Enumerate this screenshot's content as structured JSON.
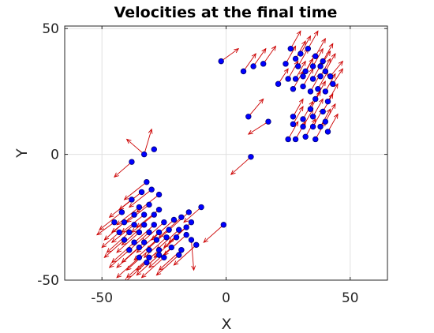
{
  "chart_data": {
    "type": "scatter",
    "title": "Velocities at the final time",
    "xlabel": "X",
    "ylabel": "Y",
    "xlim": [
      -65,
      65
    ],
    "ylim": [
      -50,
      51
    ],
    "xticks": [
      -50,
      0,
      50
    ],
    "yticks": [
      -50,
      0,
      50
    ],
    "xtick_labels": [
      "-50",
      "0",
      "50"
    ],
    "ytick_labels": [
      "-50",
      "0",
      "50"
    ],
    "grid": true,
    "box": true,
    "colors": {
      "points": "#0000ff",
      "point_edge": "#00007a",
      "arrows": "#cc0000",
      "grid": "#e0e0e0",
      "axes": "#262626"
    },
    "series": [
      {
        "type": "points",
        "points": [
          [
            -2,
            37
          ],
          [
            7,
            33
          ],
          [
            11,
            35
          ],
          [
            15,
            36
          ],
          [
            21,
            28
          ],
          [
            24,
            36
          ],
          [
            26,
            42
          ],
          [
            28,
            38
          ],
          [
            30,
            40
          ],
          [
            33,
            42
          ],
          [
            36,
            39
          ],
          [
            39,
            37
          ],
          [
            38,
            35
          ],
          [
            29,
            35
          ],
          [
            32,
            33
          ],
          [
            35,
            35
          ],
          [
            40,
            33
          ],
          [
            42,
            31
          ],
          [
            25,
            30
          ],
          [
            28,
            30
          ],
          [
            31,
            31
          ],
          [
            35,
            30
          ],
          [
            38,
            31
          ],
          [
            43,
            28
          ],
          [
            27,
            26
          ],
          [
            31,
            27
          ],
          [
            34,
            25
          ],
          [
            37,
            26
          ],
          [
            40,
            25
          ],
          [
            36,
            22
          ],
          [
            41,
            21
          ],
          [
            34,
            18
          ],
          [
            39,
            17
          ],
          [
            27,
            15
          ],
          [
            31,
            14
          ],
          [
            35,
            15
          ],
          [
            40,
            13
          ],
          [
            27,
            12
          ],
          [
            31,
            11
          ],
          [
            35,
            11
          ],
          [
            38,
            11
          ],
          [
            41,
            9
          ],
          [
            25,
            6
          ],
          [
            28,
            6
          ],
          [
            32,
            7
          ],
          [
            36,
            6
          ],
          [
            9,
            15
          ],
          [
            17,
            13
          ],
          [
            10,
            -1
          ],
          [
            -38,
            -3
          ],
          [
            -33,
            0
          ],
          [
            -29,
            2
          ],
          [
            -32,
            -11
          ],
          [
            -30,
            -14
          ],
          [
            -27,
            -16
          ],
          [
            -34,
            -15
          ],
          [
            -38,
            -18
          ],
          [
            -35,
            -21
          ],
          [
            -31,
            -20
          ],
          [
            -27,
            -22
          ],
          [
            -33,
            -24
          ],
          [
            -37,
            -24
          ],
          [
            -42,
            -23
          ],
          [
            -29,
            -24
          ],
          [
            -45,
            -27
          ],
          [
            -41,
            -27
          ],
          [
            -37,
            -28
          ],
          [
            -33,
            -28
          ],
          [
            -29,
            -28
          ],
          [
            -25,
            -27
          ],
          [
            -21,
            -26
          ],
          [
            -18,
            -25
          ],
          [
            -15,
            -23
          ],
          [
            -10,
            -21
          ],
          [
            -14,
            -27
          ],
          [
            -43,
            -31
          ],
          [
            -39,
            -31
          ],
          [
            -35,
            -31
          ],
          [
            -31,
            -31
          ],
          [
            -27,
            -31
          ],
          [
            -23,
            -30
          ],
          [
            -19,
            -30
          ],
          [
            -16,
            -29
          ],
          [
            -41,
            -34
          ],
          [
            -37,
            -35
          ],
          [
            -33,
            -35
          ],
          [
            -28,
            -34
          ],
          [
            -24,
            -33
          ],
          [
            -20,
            -33
          ],
          [
            -16,
            -32
          ],
          [
            -39,
            -38
          ],
          [
            -35,
            -37
          ],
          [
            -31,
            -38
          ],
          [
            -27,
            -38
          ],
          [
            -22,
            -37
          ],
          [
            -18,
            -38
          ],
          [
            -14,
            -34
          ],
          [
            -12,
            -36
          ],
          [
            -35,
            -41
          ],
          [
            -31,
            -41
          ],
          [
            -27,
            -40
          ],
          [
            -32,
            -43
          ],
          [
            -25,
            -41
          ],
          [
            -19,
            -40
          ],
          [
            -1,
            -28
          ]
        ]
      },
      {
        "type": "arrows",
        "segments": [
          [
            -2,
            37,
            5,
            42
          ],
          [
            7,
            33,
            12,
            40
          ],
          [
            11,
            35,
            16,
            42
          ],
          [
            15,
            36,
            20,
            43
          ],
          [
            21,
            28,
            25,
            34
          ],
          [
            24,
            36,
            28,
            43
          ],
          [
            26,
            42,
            30,
            49
          ],
          [
            28,
            38,
            32,
            45
          ],
          [
            30,
            40,
            34,
            47
          ],
          [
            33,
            42,
            37,
            49
          ],
          [
            36,
            39,
            40,
            46
          ],
          [
            39,
            37,
            43,
            44
          ],
          [
            38,
            35,
            42,
            41
          ],
          [
            29,
            35,
            33,
            42
          ],
          [
            32,
            33,
            36,
            40
          ],
          [
            35,
            35,
            39,
            42
          ],
          [
            40,
            33,
            44,
            40
          ],
          [
            42,
            31,
            47,
            37
          ],
          [
            25,
            30,
            29,
            37
          ],
          [
            28,
            30,
            32,
            37
          ],
          [
            31,
            31,
            35,
            38
          ],
          [
            35,
            30,
            39,
            37
          ],
          [
            38,
            31,
            42,
            38
          ],
          [
            43,
            28,
            47,
            34
          ],
          [
            27,
            26,
            31,
            33
          ],
          [
            31,
            27,
            35,
            34
          ],
          [
            34,
            25,
            38,
            32
          ],
          [
            37,
            26,
            41,
            33
          ],
          [
            40,
            25,
            44,
            32
          ],
          [
            36,
            22,
            40,
            29
          ],
          [
            41,
            21,
            45,
            28
          ],
          [
            34,
            18,
            38,
            25
          ],
          [
            39,
            17,
            43,
            24
          ],
          [
            27,
            15,
            31,
            22
          ],
          [
            31,
            14,
            35,
            21
          ],
          [
            35,
            15,
            39,
            22
          ],
          [
            40,
            13,
            44,
            20
          ],
          [
            27,
            12,
            31,
            19
          ],
          [
            31,
            11,
            35,
            18
          ],
          [
            35,
            11,
            39,
            18
          ],
          [
            38,
            11,
            42,
            18
          ],
          [
            41,
            9,
            45,
            16
          ],
          [
            25,
            6,
            29,
            13
          ],
          [
            28,
            6,
            32,
            13
          ],
          [
            32,
            7,
            36,
            14
          ],
          [
            36,
            6,
            40,
            13
          ],
          [
            9,
            15,
            15,
            22
          ],
          [
            17,
            13,
            9,
            8
          ],
          [
            10,
            -1,
            2,
            -8
          ],
          [
            -38,
            -3,
            -45,
            -9
          ],
          [
            -33,
            0,
            -30,
            10
          ],
          [
            -33,
            0,
            -40,
            6
          ],
          [
            -32,
            -11,
            -41,
            -18
          ],
          [
            -30,
            -14,
            -39,
            -21
          ],
          [
            -27,
            -16,
            -36,
            -23
          ],
          [
            -34,
            -15,
            -43,
            -22
          ],
          [
            -38,
            -18,
            -47,
            -25
          ],
          [
            -35,
            -21,
            -44,
            -28
          ],
          [
            -31,
            -20,
            -40,
            -27
          ],
          [
            -27,
            -22,
            -36,
            -29
          ],
          [
            -33,
            -24,
            -42,
            -31
          ],
          [
            -37,
            -24,
            -46,
            -31
          ],
          [
            -42,
            -23,
            -51,
            -30
          ],
          [
            -29,
            -24,
            -38,
            -31
          ],
          [
            -45,
            -27,
            -52,
            -32
          ],
          [
            -41,
            -27,
            -49,
            -34
          ],
          [
            -37,
            -28,
            -46,
            -35
          ],
          [
            -33,
            -28,
            -42,
            -36
          ],
          [
            -29,
            -28,
            -38,
            -36
          ],
          [
            -25,
            -27,
            -34,
            -35
          ],
          [
            -21,
            -26,
            -30,
            -34
          ],
          [
            -18,
            -25,
            -27,
            -33
          ],
          [
            -15,
            -23,
            -24,
            -31
          ],
          [
            -10,
            -21,
            -17,
            -27
          ],
          [
            -14,
            -27,
            -23,
            -35
          ],
          [
            -43,
            -31,
            -50,
            -37
          ],
          [
            -39,
            -31,
            -48,
            -39
          ],
          [
            -35,
            -31,
            -44,
            -39
          ],
          [
            -31,
            -31,
            -40,
            -39
          ],
          [
            -27,
            -31,
            -36,
            -39
          ],
          [
            -23,
            -30,
            -32,
            -38
          ],
          [
            -19,
            -30,
            -28,
            -38
          ],
          [
            -16,
            -29,
            -25,
            -37
          ],
          [
            -41,
            -34,
            -49,
            -41
          ],
          [
            -37,
            -35,
            -46,
            -43
          ],
          [
            -33,
            -35,
            -42,
            -43
          ],
          [
            -28,
            -34,
            -37,
            -42
          ],
          [
            -24,
            -33,
            -33,
            -41
          ],
          [
            -20,
            -33,
            -29,
            -41
          ],
          [
            -16,
            -32,
            -25,
            -40
          ],
          [
            -39,
            -38,
            -47,
            -45
          ],
          [
            -35,
            -37,
            -44,
            -45
          ],
          [
            -31,
            -38,
            -40,
            -46
          ],
          [
            -27,
            -38,
            -36,
            -46
          ],
          [
            -22,
            -37,
            -31,
            -45
          ],
          [
            -18,
            -38,
            -27,
            -46
          ],
          [
            -14,
            -34,
            -13,
            -46
          ],
          [
            -12,
            -36,
            -21,
            -44
          ],
          [
            -35,
            -41,
            -44,
            -49
          ],
          [
            -31,
            -41,
            -40,
            -49
          ],
          [
            -27,
            -40,
            -36,
            -48
          ],
          [
            -32,
            -43,
            -41,
            -51
          ],
          [
            -25,
            -41,
            -34,
            -49
          ],
          [
            -19,
            -40,
            -28,
            -48
          ],
          [
            -1,
            -28,
            -9,
            -35
          ]
        ]
      }
    ]
  }
}
